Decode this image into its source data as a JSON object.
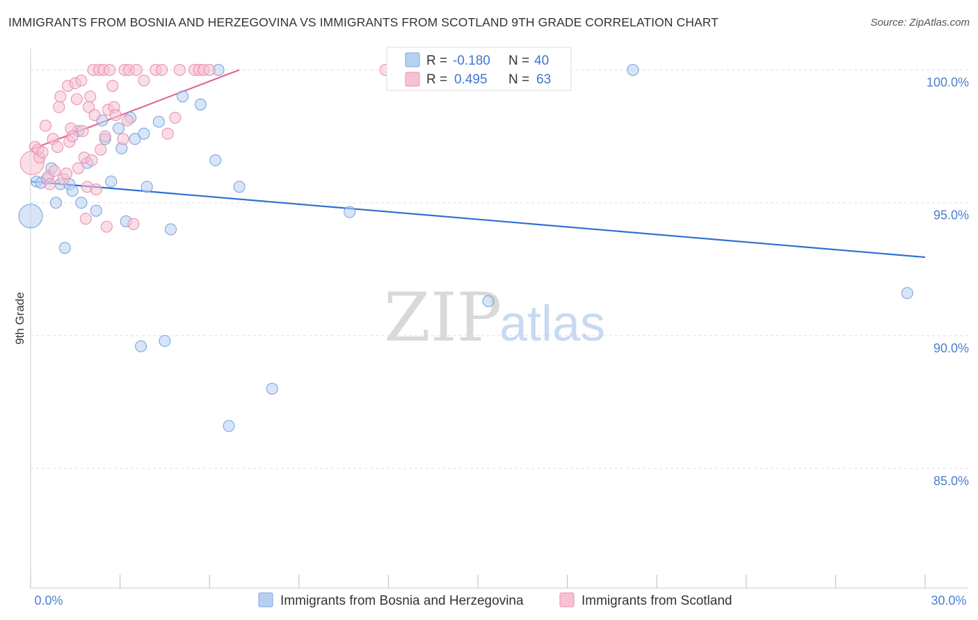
{
  "title": "IMMIGRANTS FROM BOSNIA AND HERZEGOVINA VS IMMIGRANTS FROM SCOTLAND 9TH GRADE CORRELATION CHART",
  "source": "Source: ZipAtlas.com",
  "watermark": {
    "zip": "ZIP",
    "atlas": "atlas"
  },
  "colors": {
    "blue_fill": "#b8d0f0",
    "blue_stroke": "#7aa6e0",
    "blue_line": "#2e6fd1",
    "pink_fill": "#f6c2d2",
    "pink_stroke": "#ee8fb0",
    "pink_line": "#e0689a",
    "grid": "#dddddd",
    "axis_label": "#4a7fd0"
  },
  "legend": {
    "r_label": "R =",
    "n_label": "N =",
    "series": [
      {
        "name": "Immigrants from Bosnia and Herzegovina",
        "r": "-0.180",
        "n": "40",
        "color": "blue"
      },
      {
        "name": "Immigrants from Scotland",
        "r": "0.495",
        "n": "63",
        "color": "pink"
      }
    ]
  },
  "chart_data": {
    "type": "scatter",
    "title": "IMMIGRANTS FROM BOSNIA AND HERZEGOVINA VS IMMIGRANTS FROM SCOTLAND 9TH GRADE CORRELATION CHART",
    "xlabel": "",
    "ylabel": "9th Grade",
    "xlim": [
      0,
      30
    ],
    "ylim": [
      80.5,
      100.8
    ],
    "x_tick_labels": [
      "0.0%",
      "30.0%"
    ],
    "y_ticks": [
      85,
      90,
      95,
      100
    ],
    "y_tick_labels": [
      "85.0%",
      "90.0%",
      "95.0%",
      "100.0%"
    ],
    "legend_position": "top-center",
    "series": [
      {
        "name": "Immigrants from Bosnia and Herzegovina",
        "color": "blue",
        "trend": {
          "x": [
            0.0,
            30.0
          ],
          "y": [
            95.8,
            92.95
          ]
        },
        "points": [
          {
            "x": 0.0,
            "y": 94.5,
            "big": true
          },
          {
            "x": 0.2,
            "y": 95.8
          },
          {
            "x": 0.35,
            "y": 95.75
          },
          {
            "x": 0.55,
            "y": 95.9
          },
          {
            "x": 0.7,
            "y": 96.3
          },
          {
            "x": 0.85,
            "y": 95.0
          },
          {
            "x": 1.0,
            "y": 95.7
          },
          {
            "x": 1.15,
            "y": 93.3
          },
          {
            "x": 1.3,
            "y": 95.7
          },
          {
            "x": 1.4,
            "y": 95.45
          },
          {
            "x": 1.6,
            "y": 97.7
          },
          {
            "x": 1.7,
            "y": 95.0
          },
          {
            "x": 1.9,
            "y": 96.5
          },
          {
            "x": 2.2,
            "y": 94.7
          },
          {
            "x": 2.4,
            "y": 98.1
          },
          {
            "x": 2.5,
            "y": 97.4
          },
          {
            "x": 2.7,
            "y": 95.8
          },
          {
            "x": 2.95,
            "y": 97.8
          },
          {
            "x": 3.05,
            "y": 97.05
          },
          {
            "x": 3.2,
            "y": 94.3
          },
          {
            "x": 3.35,
            "y": 98.2
          },
          {
            "x": 3.5,
            "y": 97.4
          },
          {
            "x": 3.7,
            "y": 89.6
          },
          {
            "x": 3.8,
            "y": 97.6
          },
          {
            "x": 3.9,
            "y": 95.6
          },
          {
            "x": 4.3,
            "y": 98.05
          },
          {
            "x": 4.5,
            "y": 89.8
          },
          {
            "x": 4.7,
            "y": 94.0
          },
          {
            "x": 5.1,
            "y": 99.0
          },
          {
            "x": 5.7,
            "y": 98.7
          },
          {
            "x": 6.3,
            "y": 100.0
          },
          {
            "x": 6.2,
            "y": 96.6
          },
          {
            "x": 6.65,
            "y": 86.6
          },
          {
            "x": 7.0,
            "y": 95.6
          },
          {
            "x": 8.1,
            "y": 88.0
          },
          {
            "x": 10.7,
            "y": 94.65
          },
          {
            "x": 15.35,
            "y": 91.3
          },
          {
            "x": 20.2,
            "y": 100.0
          },
          {
            "x": 29.4,
            "y": 91.6
          }
        ]
      },
      {
        "name": "Immigrants from Scotland",
        "color": "pink",
        "trend": {
          "x": [
            0.0,
            7.0
          ],
          "y": [
            97.0,
            100.0
          ]
        },
        "points": [
          {
            "x": 0.05,
            "y": 96.5,
            "big": true
          },
          {
            "x": 0.15,
            "y": 97.1
          },
          {
            "x": 0.25,
            "y": 97.0
          },
          {
            "x": 0.3,
            "y": 96.7
          },
          {
            "x": 0.4,
            "y": 96.9
          },
          {
            "x": 0.5,
            "y": 97.9
          },
          {
            "x": 0.6,
            "y": 96.0
          },
          {
            "x": 0.65,
            "y": 95.7
          },
          {
            "x": 0.75,
            "y": 97.4
          },
          {
            "x": 0.8,
            "y": 96.2
          },
          {
            "x": 0.9,
            "y": 97.1
          },
          {
            "x": 0.95,
            "y": 98.6
          },
          {
            "x": 1.0,
            "y": 99.0
          },
          {
            "x": 1.1,
            "y": 95.9
          },
          {
            "x": 1.2,
            "y": 96.1
          },
          {
            "x": 1.25,
            "y": 99.4
          },
          {
            "x": 1.3,
            "y": 97.3
          },
          {
            "x": 1.35,
            "y": 97.8
          },
          {
            "x": 1.4,
            "y": 97.5
          },
          {
            "x": 1.5,
            "y": 99.5
          },
          {
            "x": 1.55,
            "y": 98.9
          },
          {
            "x": 1.6,
            "y": 96.3
          },
          {
            "x": 1.7,
            "y": 99.6
          },
          {
            "x": 1.75,
            "y": 97.7
          },
          {
            "x": 1.8,
            "y": 96.7
          },
          {
            "x": 1.85,
            "y": 94.4
          },
          {
            "x": 1.9,
            "y": 95.6
          },
          {
            "x": 1.95,
            "y": 98.6
          },
          {
            "x": 2.0,
            "y": 99.0
          },
          {
            "x": 2.05,
            "y": 96.6
          },
          {
            "x": 2.1,
            "y": 100.0
          },
          {
            "x": 2.15,
            "y": 98.3
          },
          {
            "x": 2.2,
            "y": 95.5
          },
          {
            "x": 2.3,
            "y": 100.0
          },
          {
            "x": 2.35,
            "y": 97.0
          },
          {
            "x": 2.45,
            "y": 100.0
          },
          {
            "x": 2.5,
            "y": 97.5
          },
          {
            "x": 2.55,
            "y": 94.1
          },
          {
            "x": 2.6,
            "y": 98.5
          },
          {
            "x": 2.65,
            "y": 100.0
          },
          {
            "x": 2.75,
            "y": 99.4
          },
          {
            "x": 2.8,
            "y": 98.6
          },
          {
            "x": 2.85,
            "y": 98.3
          },
          {
            "x": 3.1,
            "y": 97.4
          },
          {
            "x": 3.15,
            "y": 100.0
          },
          {
            "x": 3.25,
            "y": 98.1
          },
          {
            "x": 3.3,
            "y": 100.0
          },
          {
            "x": 3.45,
            "y": 94.2
          },
          {
            "x": 3.55,
            "y": 100.0
          },
          {
            "x": 3.8,
            "y": 99.6
          },
          {
            "x": 4.2,
            "y": 100.0
          },
          {
            "x": 4.4,
            "y": 100.0
          },
          {
            "x": 4.6,
            "y": 97.6
          },
          {
            "x": 4.85,
            "y": 98.2
          },
          {
            "x": 5.0,
            "y": 100.0
          },
          {
            "x": 5.5,
            "y": 100.0
          },
          {
            "x": 5.65,
            "y": 100.0
          },
          {
            "x": 5.8,
            "y": 100.0
          },
          {
            "x": 6.0,
            "y": 100.0
          },
          {
            "x": 11.9,
            "y": 100.0
          }
        ]
      }
    ]
  }
}
